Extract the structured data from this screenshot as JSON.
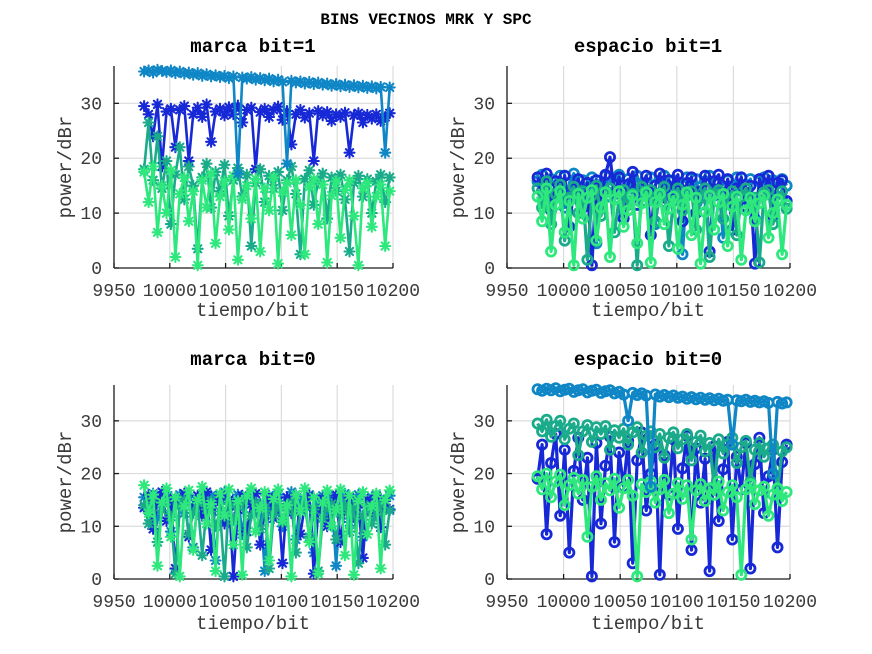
{
  "figure": {
    "title": "BINS VECINOS MRK Y SPC",
    "background": "#ffffff",
    "grid_color": "#dcdcdc",
    "axis_color": "#1a1a1a",
    "tick_label_color": "#3a3a3a",
    "series_colors": {
      "blue": "#1729d6",
      "steel": "#0f86c5",
      "sea": "#1aab8b",
      "spring": "#2ee87d"
    }
  },
  "chart_data": [
    {
      "type": "line",
      "title": "marca bit=1",
      "xlabel": "tiempo/bit",
      "ylabel": "power/dBr",
      "marker": "asterisk",
      "grid": true,
      "xlim": [
        9950,
        10200
      ],
      "ylim": [
        0,
        36.8
      ],
      "xticks": [
        9950,
        10000,
        10050,
        10100,
        10150,
        10200
      ],
      "yticks": [
        0,
        10,
        20,
        30
      ],
      "x_start": 9977,
      "x_step": 4,
      "series": [
        {
          "color": "blue",
          "values": [
            29.5,
            28.0,
            24.0,
            29.8,
            18.5,
            28.5,
            29.0,
            22.0,
            28.8,
            29.5,
            19.5,
            28.0,
            29.2,
            27.5,
            29.8,
            23.0,
            28.5,
            29.0,
            27.8,
            29.3,
            28.0,
            29.6,
            26.5,
            28.8,
            29.2,
            18.0,
            28.4,
            29.0,
            27.5,
            28.8,
            29.4,
            27.0,
            28.6,
            22.5,
            28.0,
            28.8,
            27.4,
            28.2,
            19.5,
            28.6,
            27.8,
            28.4,
            26.8,
            28.0,
            27.5,
            28.3,
            21.0,
            27.8,
            28.2,
            26.5,
            27.9,
            27.2,
            28.0,
            26.8,
            27.5,
            28.2
          ]
        },
        {
          "color": "sea",
          "values": [
            18.0,
            26.5,
            16.0,
            24.0,
            14.5,
            19.5,
            8.0,
            17.0,
            22.0,
            12.5,
            18.5,
            15.0,
            3.5,
            16.5,
            19.0,
            11.0,
            17.5,
            14.0,
            18.8,
            9.5,
            16.0,
            18.2,
            13.0,
            17.0,
            4.0,
            15.5,
            18.0,
            12.0,
            16.8,
            14.5,
            17.5,
            10.5,
            16.0,
            18.5,
            13.5,
            2.5,
            16.2,
            17.8,
            11.5,
            15.8,
            17.2,
            9.0,
            16.5,
            14.0,
            17.0,
            12.5,
            3.0,
            15.5,
            16.8,
            13.0,
            16.2,
            10.0,
            15.8,
            17.0,
            12.0,
            16.5
          ]
        },
        {
          "color": "spring",
          "values": [
            17.5,
            12.0,
            18.5,
            6.5,
            15.0,
            10.0,
            17.8,
            2.0,
            13.5,
            16.5,
            8.5,
            14.0,
            0.5,
            16.0,
            11.0,
            17.2,
            4.5,
            13.0,
            15.8,
            7.0,
            16.8,
            1.5,
            12.5,
            15.0,
            9.0,
            16.2,
            3.0,
            14.5,
            10.5,
            16.5,
            0.8,
            13.8,
            15.5,
            6.0,
            16.0,
            11.5,
            2.5,
            14.8,
            16.2,
            8.0,
            15.2,
            1.0,
            13.2,
            15.8,
            5.5,
            14.2,
            16.0,
            9.5,
            0.5,
            14.5,
            15.5,
            7.5,
            13.0,
            15.2,
            4.0,
            14.0
          ]
        },
        {
          "color": "steel",
          "values": [
            35.8,
            36.0,
            35.6,
            36.1,
            35.9,
            35.7,
            36.0,
            35.5,
            35.8,
            35.4,
            35.6,
            35.2,
            35.5,
            35.0,
            35.3,
            34.9,
            35.1,
            34.8,
            35.0,
            34.6,
            34.9,
            17.2,
            34.7,
            34.5,
            34.8,
            34.3,
            34.6,
            34.2,
            34.5,
            34.0,
            34.3,
            33.9,
            19.0,
            34.1,
            33.8,
            34.0,
            33.6,
            33.9,
            33.5,
            33.8,
            33.4,
            33.6,
            33.2,
            33.5,
            33.1,
            33.4,
            33.0,
            33.3,
            32.9,
            33.2,
            32.8,
            33.1,
            32.7,
            33.0,
            21.0,
            32.9
          ]
        }
      ]
    },
    {
      "type": "line",
      "title": "espacio bit=1",
      "xlabel": "tiempo/bit",
      "ylabel": "power/dBr",
      "marker": "circle",
      "grid": true,
      "xlim": [
        9950,
        10200
      ],
      "ylim": [
        0,
        36.8
      ],
      "xticks": [
        9950,
        10000,
        10050,
        10100,
        10150,
        10200
      ],
      "yticks": [
        0,
        10,
        20,
        30
      ],
      "x_start": 9977,
      "x_step": 4,
      "series": [
        {
          "color": "steel",
          "values": [
            15.8,
            17.0,
            13.5,
            16.2,
            14.8,
            16.8,
            11.0,
            15.5,
            17.2,
            12.5,
            16.0,
            14.0,
            16.5,
            4.5,
            15.2,
            16.8,
            13.0,
            15.8,
            17.0,
            10.5,
            16.2,
            14.5,
            16.8,
            12.0,
            15.5,
            16.5,
            8.0,
            15.0,
            16.8,
            13.8,
            16.0,
            15.2,
            2.5,
            16.5,
            14.2,
            16.2,
            11.5,
            15.8,
            16.8,
            13.2,
            15.5,
            5.5,
            16.0,
            14.8,
            16.5,
            12.8,
            15.2,
            16.2,
            9.0,
            15.8,
            16.5,
            13.5,
            16.0,
            14.5,
            16.2,
            15.0
          ]
        },
        {
          "color": "blue",
          "values": [
            16.5,
            14.0,
            17.2,
            10.5,
            15.8,
            13.0,
            16.8,
            7.5,
            14.5,
            16.2,
            11.0,
            15.5,
            0.5,
            16.0,
            12.5,
            17.0,
            20.2,
            13.5,
            16.5,
            9.0,
            15.2,
            17.5,
            11.5,
            14.8,
            16.8,
            6.0,
            15.0,
            17.2,
            12.0,
            16.0,
            14.2,
            17.0,
            8.5,
            15.5,
            16.5,
            10.0,
            14.0,
            16.8,
            3.0,
            15.8,
            17.0,
            12.8,
            16.2,
            7.0,
            14.5,
            16.5,
            11.2,
            15.0,
            0.8,
            16.2,
            13.8,
            16.8,
            9.5,
            15.5,
            16.0,
            12.2
          ]
        },
        {
          "color": "sea",
          "values": [
            14.5,
            11.0,
            15.8,
            8.0,
            13.5,
            15.2,
            5.0,
            12.8,
            14.8,
            10.0,
            14.0,
            1.5,
            13.2,
            15.0,
            9.5,
            13.8,
            14.5,
            6.5,
            12.5,
            14.2,
            11.5,
            13.5,
            0.5,
            14.8,
            12.0,
            14.2,
            8.5,
            13.0,
            14.8,
            4.0,
            12.2,
            14.5,
            10.5,
            13.2,
            14.0,
            7.0,
            12.8,
            14.5,
            2.0,
            13.5,
            14.2,
            9.0,
            12.5,
            14.0,
            6.0,
            13.0,
            14.5,
            11.0,
            12.8,
            1.0,
            13.8,
            14.2,
            8.0,
            12.2,
            14.0,
            10.8
          ]
        },
        {
          "color": "spring",
          "values": [
            13.0,
            8.5,
            14.5,
            3.0,
            11.5,
            14.0,
            6.5,
            12.2,
            0.5,
            13.5,
            9.0,
            12.8,
            14.2,
            5.0,
            11.0,
            13.8,
            2.0,
            12.5,
            14.0,
            7.5,
            10.5,
            13.2,
            4.5,
            11.8,
            13.8,
            1.0,
            12.0,
            13.5,
            8.0,
            10.8,
            13.0,
            3.5,
            11.5,
            13.8,
            6.0,
            12.8,
            0.8,
            10.2,
            13.2,
            7.0,
            12.0,
            13.5,
            4.0,
            11.2,
            13.0,
            1.5,
            10.5,
            12.8,
            8.5,
            11.8,
            13.2,
            5.5,
            10.0,
            12.5,
            2.5,
            11.5
          ]
        }
      ]
    },
    {
      "type": "line",
      "title": "marca bit=0",
      "xlabel": "tiempo/bit",
      "ylabel": "power/dBr",
      "marker": "asterisk",
      "grid": true,
      "xlim": [
        9950,
        10200
      ],
      "ylim": [
        0,
        36.8
      ],
      "xticks": [
        9950,
        10000,
        10050,
        10100,
        10150,
        10200
      ],
      "yticks": [
        0,
        10,
        20,
        30
      ],
      "x_start": 9977,
      "x_step": 4,
      "series": [
        {
          "color": "steel",
          "values": [
            15.5,
            13.0,
            16.2,
            11.5,
            15.0,
            16.5,
            9.0,
            14.2,
            16.0,
            12.5,
            15.5,
            6.0,
            14.8,
            16.2,
            13.5,
            15.8,
            3.5,
            15.2,
            16.5,
            11.0,
            14.5,
            16.0,
            8.5,
            15.0,
            16.2,
            12.8,
            14.2,
            1.5,
            15.8,
            13.2,
            16.0,
            10.0,
            14.8,
            16.5,
            7.5,
            15.2,
            13.8,
            16.0,
            5.0,
            14.5,
            15.8,
            12.2,
            15.5,
            2.5,
            14.0,
            16.2,
            10.8,
            15.0,
            16.0,
            8.0,
            14.8,
            15.5,
            12.0,
            15.2,
            13.5,
            15.8
          ]
        },
        {
          "color": "blue",
          "values": [
            13.5,
            16.0,
            9.5,
            14.8,
            16.5,
            11.0,
            15.2,
            2.0,
            14.0,
            16.2,
            8.0,
            13.8,
            15.8,
            12.0,
            16.5,
            5.5,
            14.5,
            16.0,
            10.5,
            15.0,
            0.5,
            13.2,
            15.8,
            9.0,
            14.2,
            16.2,
            6.5,
            13.5,
            15.5,
            11.5,
            14.8,
            3.0,
            15.5,
            12.5,
            16.0,
            8.5,
            14.0,
            15.8,
            1.0,
            13.0,
            15.2,
            10.0,
            14.5,
            16.0,
            7.0,
            13.8,
            15.5,
            11.8,
            14.2,
            4.0,
            15.0,
            12.8,
            15.8,
            9.8,
            14.8,
            13.2
          ]
        },
        {
          "color": "sea",
          "values": [
            14.0,
            10.5,
            15.2,
            7.0,
            13.0,
            14.8,
            11.8,
            1.0,
            13.8,
            15.0,
            8.5,
            12.5,
            14.5,
            4.5,
            13.2,
            14.8,
            10.0,
            12.8,
            0.5,
            14.2,
            11.2,
            13.8,
            14.8,
            6.0,
            12.0,
            14.5,
            9.5,
            13.5,
            2.0,
            12.2,
            14.2,
            10.8,
            13.0,
            14.5,
            5.0,
            12.8,
            14.0,
            8.0,
            13.2,
            1.5,
            11.5,
            13.8,
            14.2,
            7.5,
            12.5,
            14.0,
            9.0,
            13.5,
            3.0,
            12.0,
            13.8,
            10.5,
            12.8,
            14.2,
            6.5,
            13.0
          ]
        },
        {
          "color": "spring",
          "values": [
            17.8,
            12.5,
            16.0,
            2.5,
            14.5,
            17.2,
            8.0,
            15.5,
            0.5,
            13.8,
            16.8,
            5.5,
            15.0,
            17.5,
            10.5,
            14.2,
            1.5,
            16.2,
            12.0,
            17.0,
            6.5,
            14.8,
            0.8,
            15.8,
            17.2,
            9.0,
            13.5,
            16.5,
            3.5,
            15.2,
            17.0,
            11.0,
            14.0,
            0.5,
            16.0,
            12.8,
            17.2,
            7.0,
            15.5,
            1.0,
            14.5,
            16.8,
            10.0,
            13.2,
            17.0,
            4.5,
            15.8,
            0.8,
            14.8,
            16.5,
            8.5,
            13.8,
            16.2,
            2.0,
            15.0,
            16.8
          ]
        }
      ]
    },
    {
      "type": "line",
      "title": "espacio bit=0",
      "xlabel": "tiempo/bit",
      "ylabel": "power/dBr",
      "marker": "circle",
      "grid": true,
      "xlim": [
        9950,
        10200
      ],
      "ylim": [
        0,
        36.8
      ],
      "xticks": [
        9950,
        10000,
        10050,
        10100,
        10150,
        10200
      ],
      "yticks": [
        0,
        10,
        20,
        30
      ],
      "x_start": 9977,
      "x_step": 4,
      "series": [
        {
          "color": "blue",
          "values": [
            19.0,
            25.5,
            8.5,
            22.0,
            27.5,
            12.0,
            24.5,
            5.0,
            20.5,
            26.8,
            15.0,
            23.0,
            0.5,
            25.8,
            10.5,
            21.5,
            27.0,
            7.0,
            24.0,
            17.5,
            26.2,
            3.0,
            22.5,
            27.8,
            13.0,
            20.0,
            25.5,
            0.8,
            23.5,
            16.0,
            26.5,
            9.5,
            21.0,
            27.2,
            5.5,
            24.8,
            14.5,
            22.8,
            1.5,
            25.2,
            11.0,
            20.8,
            26.0,
            7.5,
            23.2,
            17.0,
            25.8,
            2.0,
            21.8,
            26.8,
            12.5,
            19.5,
            24.5,
            6.0,
            22.2,
            25.5
          ]
        },
        {
          "color": "sea",
          "values": [
            29.5,
            28.0,
            30.2,
            27.0,
            29.0,
            30.0,
            26.5,
            28.5,
            29.5,
            23.5,
            28.0,
            29.2,
            26.0,
            28.8,
            27.5,
            29.0,
            24.5,
            28.2,
            26.8,
            28.5,
            25.5,
            27.8,
            28.8,
            24.0,
            27.2,
            28.0,
            25.0,
            27.5,
            23.0,
            26.8,
            27.8,
            24.8,
            26.5,
            27.5,
            22.5,
            26.0,
            27.2,
            24.2,
            25.8,
            17.5,
            26.5,
            23.8,
            25.5,
            26.8,
            22.0,
            25.0,
            26.2,
            18.5,
            24.5,
            25.8,
            23.2,
            24.8,
            25.5,
            17.0,
            24.2,
            25.0
          ]
        },
        {
          "color": "spring",
          "values": [
            19.5,
            17.0,
            20.0,
            15.5,
            18.5,
            19.8,
            14.0,
            17.8,
            19.2,
            16.2,
            18.8,
            8.0,
            17.5,
            19.5,
            15.0,
            18.2,
            16.8,
            19.0,
            13.5,
            17.2,
            18.8,
            15.8,
            0.5,
            18.0,
            16.5,
            18.5,
            14.5,
            17.0,
            18.8,
            12.5,
            16.2,
            18.2,
            15.2,
            17.8,
            7.5,
            16.8,
            18.0,
            14.8,
            17.2,
            16.0,
            18.5,
            13.0,
            16.5,
            17.8,
            15.5,
            0.8,
            17.0,
            18.0,
            14.2,
            16.8,
            17.5,
            12.0,
            16.0,
            17.2,
            14.8,
            16.5
          ]
        },
        {
          "color": "steel",
          "values": [
            36.0,
            35.7,
            36.1,
            35.8,
            36.2,
            35.6,
            35.9,
            36.1,
            35.5,
            35.8,
            36.0,
            35.4,
            35.7,
            35.9,
            35.3,
            35.6,
            35.8,
            35.2,
            35.5,
            35.0,
            30.0,
            35.3,
            34.9,
            35.2,
            34.8,
            17.5,
            35.0,
            34.6,
            34.9,
            34.5,
            34.8,
            34.4,
            34.6,
            34.2,
            34.5,
            34.1,
            34.4,
            34.0,
            34.3,
            33.9,
            34.2,
            33.8,
            34.0,
            25.5,
            33.9,
            33.7,
            34.0,
            33.6,
            33.8,
            33.5,
            33.7,
            33.4,
            20.0,
            33.6,
            33.3,
            33.5
          ]
        }
      ]
    }
  ]
}
